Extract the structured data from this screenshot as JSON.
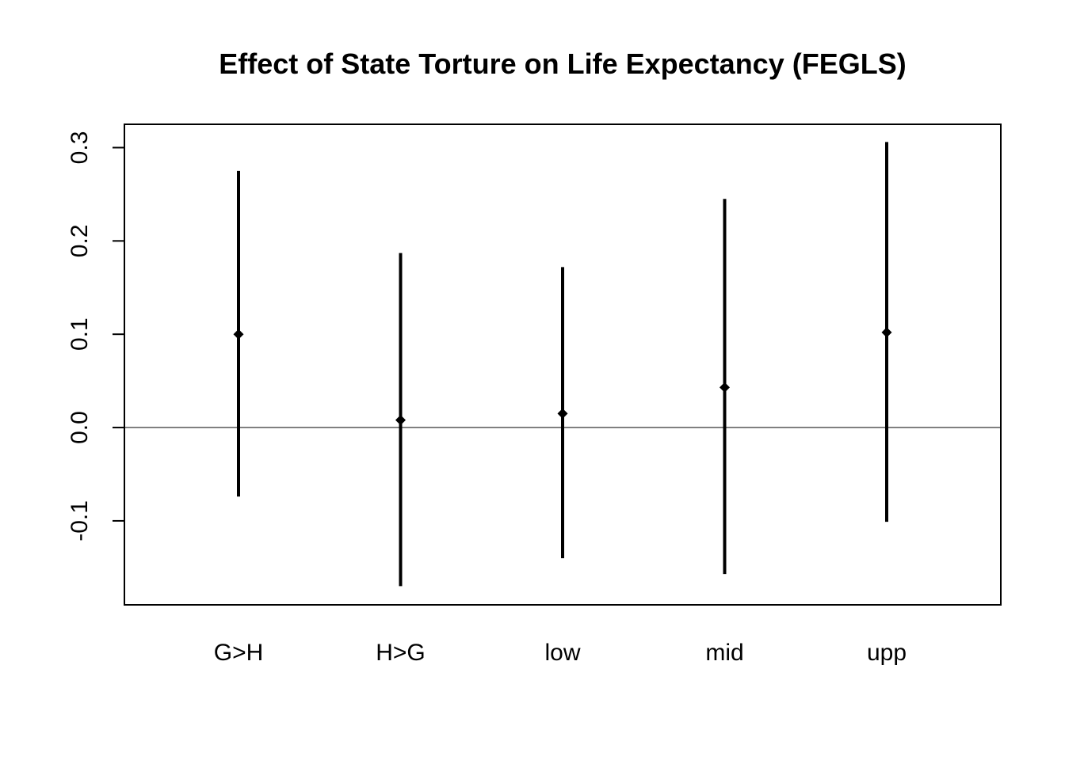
{
  "chart_data": {
    "type": "scatter",
    "title": "Effect of State Torture on Life Expectancy (FEGLS)",
    "xlabel": "",
    "ylabel": "",
    "categories": [
      "G>H",
      "H>G",
      "low",
      "mid",
      "upp"
    ],
    "estimates": [
      0.1,
      0.008,
      0.015,
      0.043,
      0.102
    ],
    "lower": [
      -0.074,
      -0.17,
      -0.14,
      -0.157,
      -0.101
    ],
    "upper": [
      0.275,
      0.187,
      0.172,
      0.245,
      0.306
    ],
    "yticks": [
      -0.1,
      0.0,
      0.1,
      0.2,
      0.3
    ],
    "ytick_labels": [
      "-0.1",
      "0.0",
      "0.1",
      "0.2",
      "0.3"
    ],
    "ylim": [
      -0.19,
      0.325
    ],
    "reference_line": 0.0,
    "grid": false,
    "legend": "none"
  }
}
